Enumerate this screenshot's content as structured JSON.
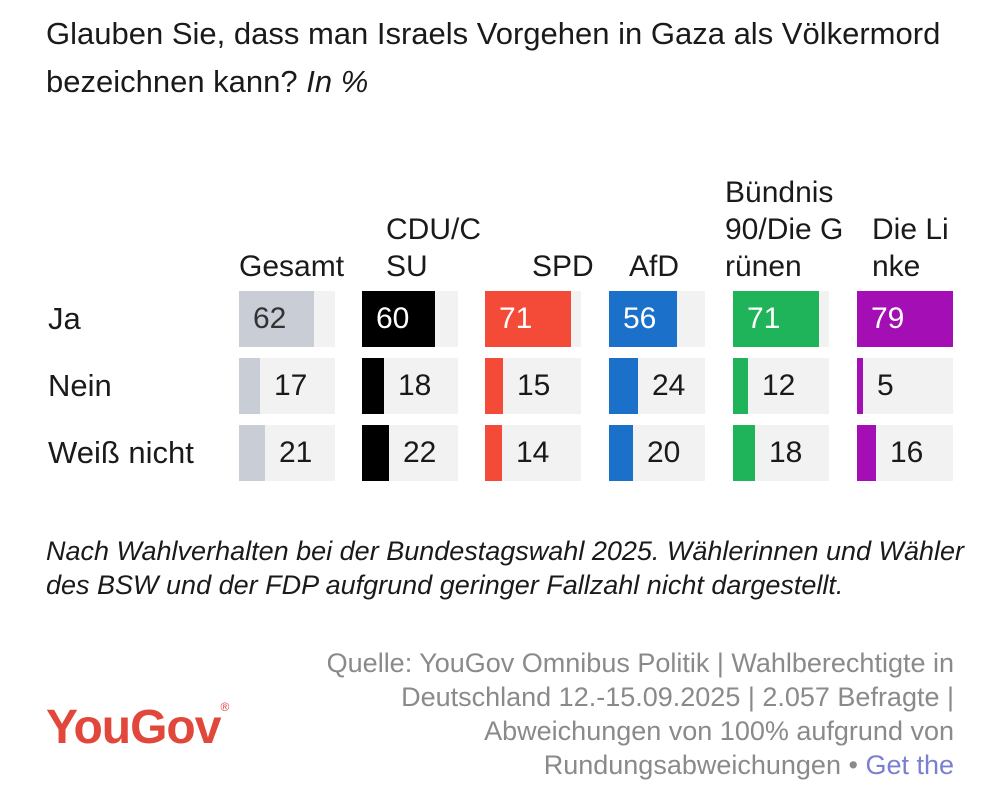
{
  "title": "Glauben Sie, dass man Israels Vorgehen in Gaza als Völkermord bezeichnen kann?",
  "unit": "In %",
  "chart_data": {
    "type": "table",
    "columns": [
      {
        "name": "Gesamt",
        "color": "#c9cdd6",
        "label_color": "#333333"
      },
      {
        "name": "CDU/CSU",
        "color": "#000000",
        "label_color": "#ffffff"
      },
      {
        "name": "SPD",
        "color": "#f44a38",
        "label_color": "#ffffff"
      },
      {
        "name": "AfD",
        "color": "#1b71c9",
        "label_color": "#ffffff"
      },
      {
        "name": "Bündnis 90/Die Grünen",
        "color": "#1fb459",
        "label_color": "#ffffff"
      },
      {
        "name": "Die Linke",
        "color": "#a40fb5",
        "label_color": "#ffffff"
      }
    ],
    "rows": [
      {
        "label": "Ja",
        "values": [
          62,
          60,
          71,
          56,
          71,
          79
        ]
      },
      {
        "label": "Nein",
        "values": [
          17,
          18,
          15,
          24,
          12,
          5
        ]
      },
      {
        "label": "Weiß nicht",
        "values": [
          21,
          22,
          14,
          20,
          18,
          16
        ]
      }
    ],
    "value_max": 79
  },
  "note": "Nach Wahlverhalten bei der Bundestagswahl 2025. Wählerinnen und Wähler des BSW und der FDP aufgrund geringer Fallzahl nicht dargestellt.",
  "source": "Quelle: YouGov Omnibus Politik | Wahlberechtigte in Deutschland 12.-15.09.2025 | 2.057 Befragte | Abweichungen von 100% aufgrund von Rundungsabweichungen •",
  "source_link": "Get the",
  "logo": {
    "text": "YouGov",
    "mark": "®",
    "color": "#e2473b"
  }
}
